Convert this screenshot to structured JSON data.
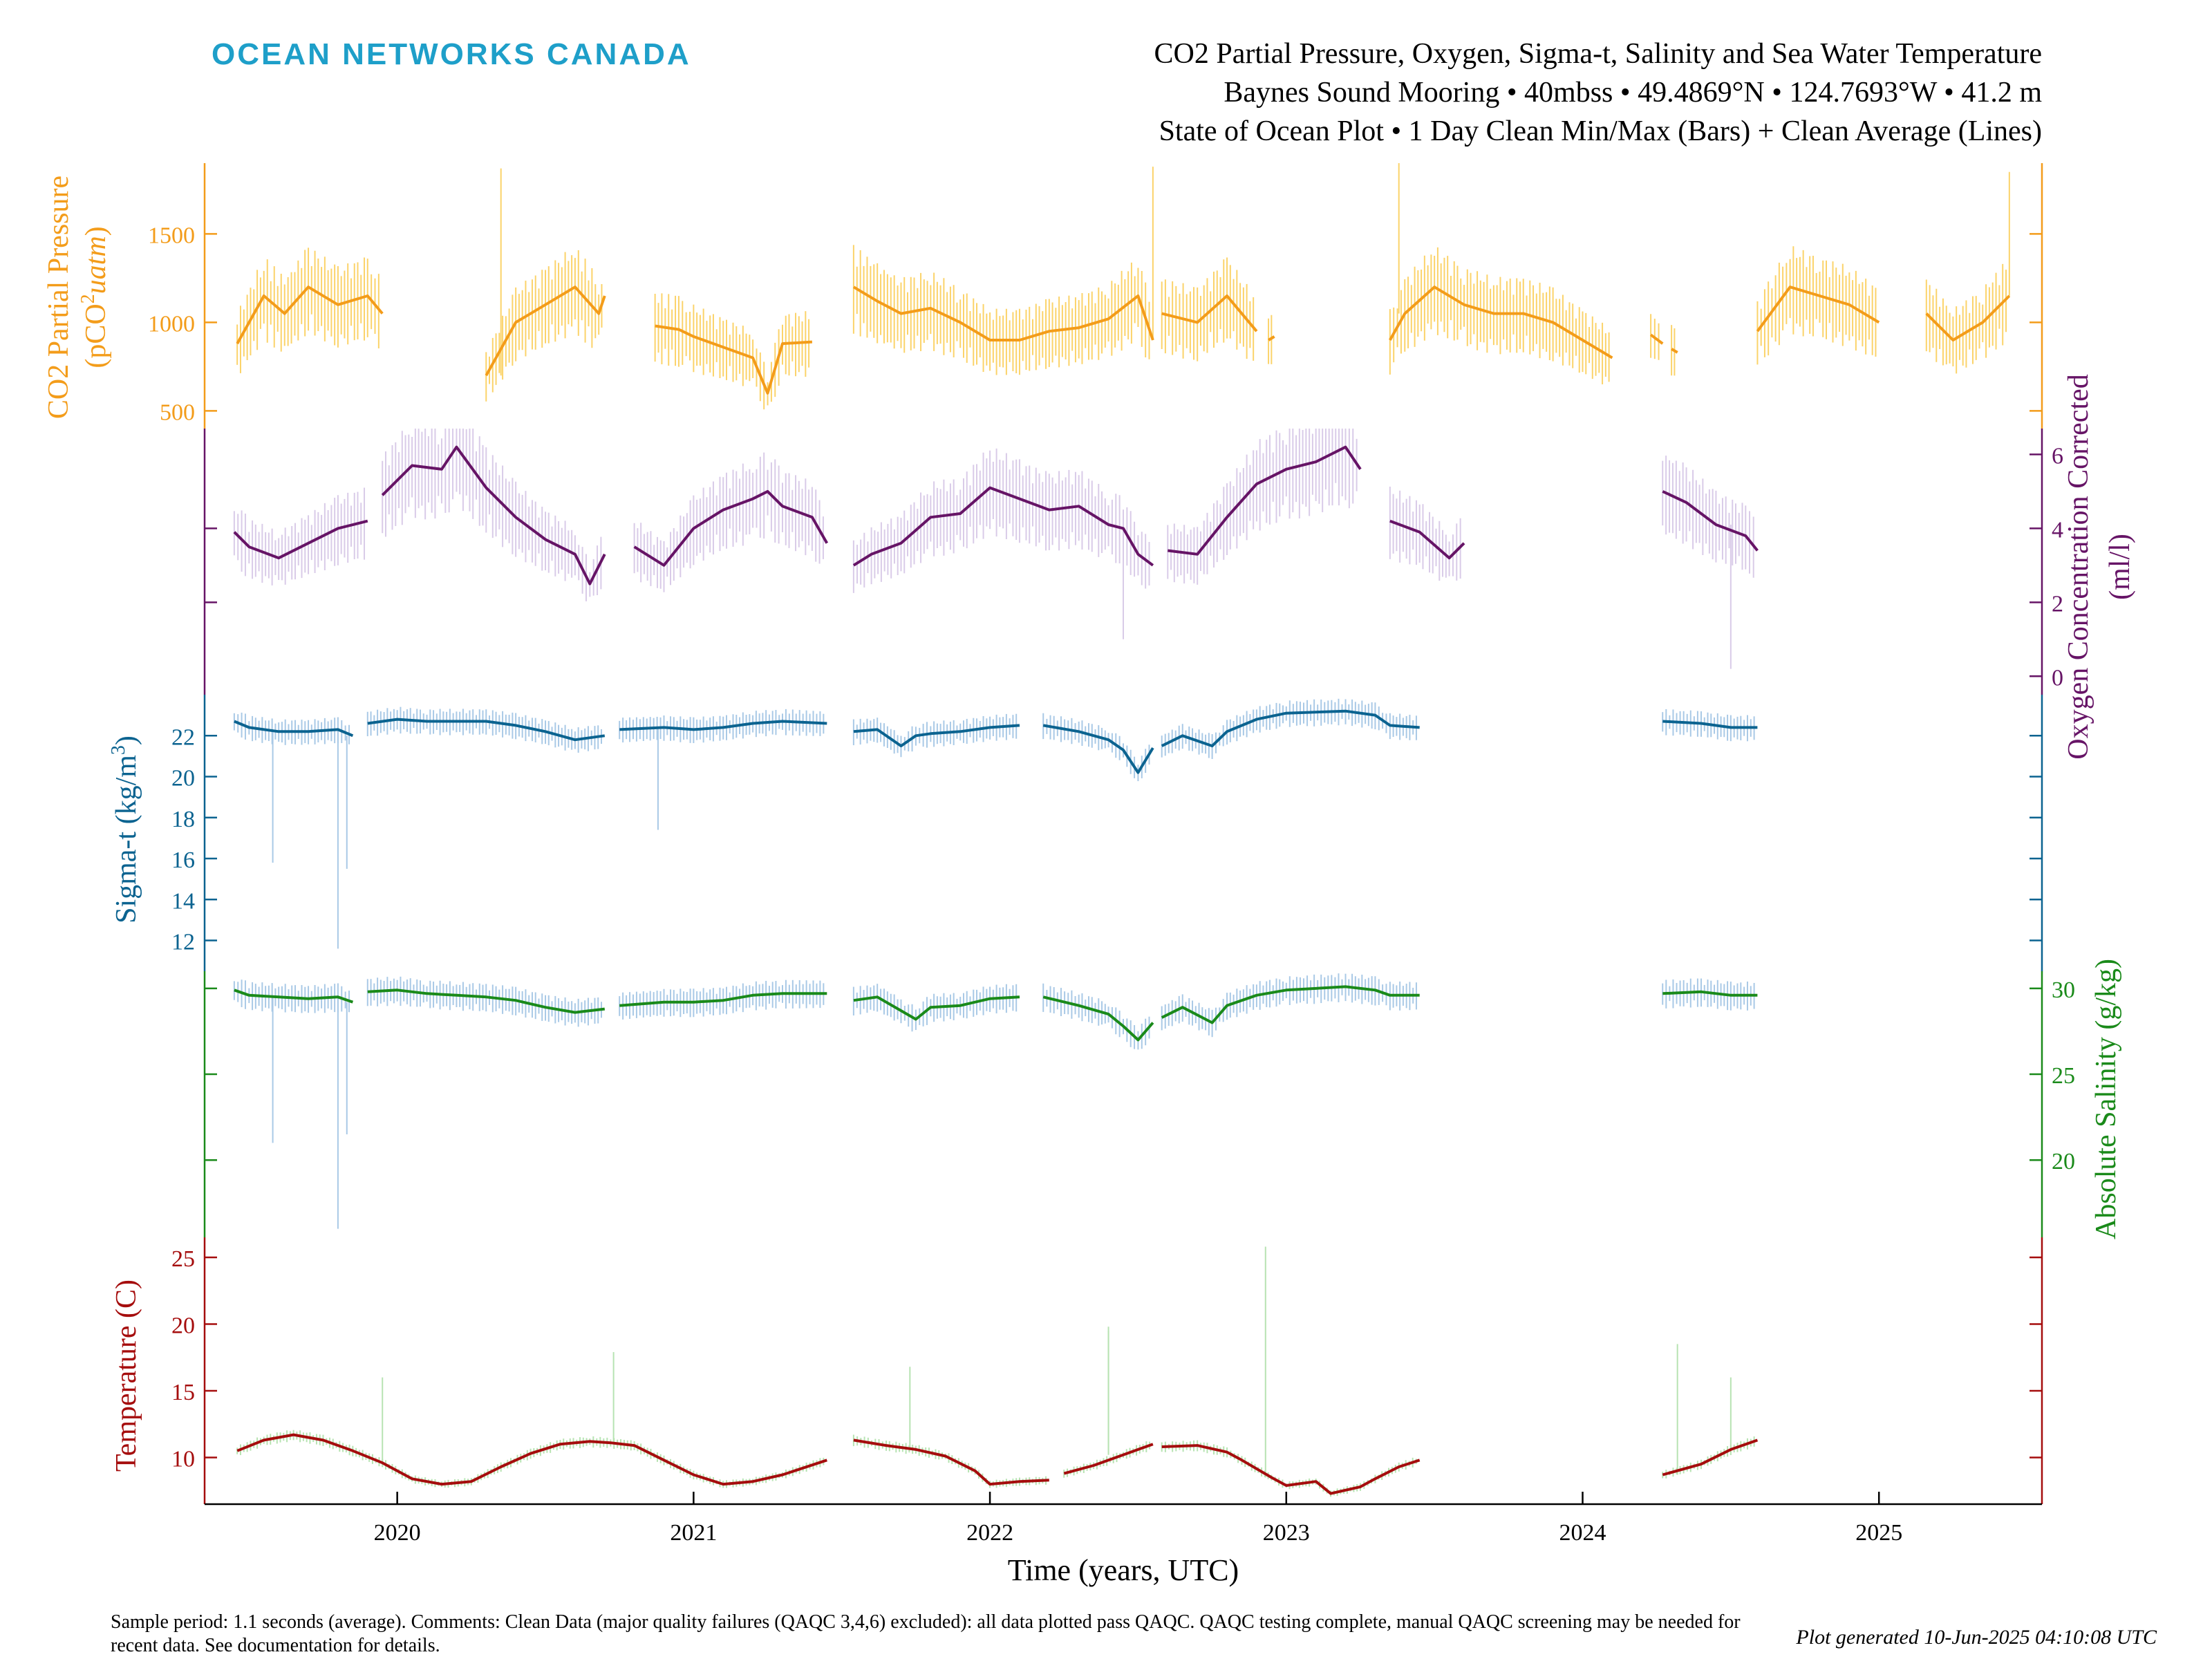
{
  "logo_text": "OCEAN NETWORKS CANADA",
  "title_lines": [
    "CO2 Partial Pressure, Oxygen, Sigma-t, Salinity and Sea Water Temperature",
    "Baynes Sound Mooring • 40mbss • 49.4869°N • 124.7693°W • 41.2 m",
    "State of Ocean Plot • 1 Day Clean Min/Max (Bars) + Clean Average (Lines)"
  ],
  "footer": "Sample period: 1.1 seconds (average). Comments: Clean Data (major quality failures (QAQC 3,4,6) excluded): all data plotted pass QAQC. QAQC testing complete, manual QAQC screening may be needed for recent data. See documentation for details.",
  "generated": "Plot generated 10-Jun-2025 04:10:08 UTC",
  "chart_data": {
    "type": "line",
    "xlabel": "Time (years, UTC)",
    "xlim": [
      2019.35,
      2025.55
    ],
    "x_ticks": [
      2020,
      2021,
      2022,
      2023,
      2024,
      2025
    ],
    "x_tick_labels": [
      "2020",
      "2021",
      "2022",
      "2023",
      "2024",
      "2025"
    ],
    "series": [
      {
        "key": "co2",
        "ylabel": "CO2 Partial Pressure (pCO2uatm)",
        "ylabel_line1": "CO2 Partial Pressure",
        "ylabel_line2": "(pCO",
        "ylabel_sup": "2",
        "ylabel_italic": "uatm",
        "ylabel_close": ")",
        "axis_side": "left",
        "color": "#f39c1a",
        "band_color": "#fbd36a",
        "ylim": [
          400,
          1900
        ],
        "ticks": [
          500,
          1000,
          1500
        ],
        "tick_labels": [
          "500",
          "1000",
          "1500"
        ],
        "range_pct": 22,
        "x": [
          2019.46,
          2019.55,
          2019.62,
          2019.7,
          2019.8,
          2019.9,
          2019.95,
          null,
          2020.3,
          2020.4,
          2020.5,
          2020.6,
          2020.68,
          2020.7,
          null,
          2020.87,
          2020.95,
          2021.0,
          2021.1,
          2021.2,
          2021.25,
          2021.3,
          2021.4,
          null,
          2021.54,
          2021.62,
          2021.7,
          2021.8,
          2021.9,
          2022.0,
          2022.1,
          2022.2,
          2022.3,
          2022.4,
          2022.5,
          2022.55,
          null,
          2022.58,
          2022.7,
          2022.8,
          2022.9,
          null,
          2022.94,
          2022.96,
          null,
          2023.35,
          2023.4,
          2023.5,
          2023.6,
          2023.7,
          2023.8,
          2023.9,
          2024.0,
          2024.1,
          null,
          2024.23,
          2024.27,
          null,
          2024.3,
          2024.32,
          null,
          2024.59,
          2024.7,
          2024.8,
          2024.9,
          2025.0,
          null,
          2025.16,
          2025.25,
          2025.35,
          2025.44
        ],
        "y": [
          880,
          1150,
          1050,
          1200,
          1100,
          1150,
          1050,
          null,
          700,
          1000,
          1100,
          1200,
          1050,
          1150,
          null,
          980,
          960,
          920,
          860,
          800,
          600,
          880,
          890,
          null,
          1200,
          1120,
          1050,
          1080,
          1000,
          900,
          900,
          950,
          970,
          1020,
          1150,
          900,
          null,
          1050,
          1000,
          1150,
          950,
          null,
          900,
          920,
          null,
          900,
          1050,
          1200,
          1100,
          1050,
          1050,
          1000,
          900,
          800,
          null,
          930,
          880,
          null,
          850,
          830,
          null,
          950,
          1200,
          1150,
          1100,
          1000,
          null,
          1050,
          900,
          1000,
          1150
        ]
      },
      {
        "key": "oxygen",
        "ylabel": "Oxygen Concentration Corrected (ml/l)",
        "ylabel_line1": "Oxygen Concentration Corrected",
        "ylabel_line2": "(ml/l)",
        "axis_side": "right",
        "color": "#661466",
        "band_color": "#d9cbe8",
        "ylim": [
          -0.5,
          6.7
        ],
        "ticks": [
          0,
          2,
          4,
          6
        ],
        "tick_labels": [
          "0",
          "2",
          "4",
          "6"
        ],
        "range_pct": 25,
        "x": [
          2019.45,
          2019.5,
          2019.6,
          2019.7,
          2019.8,
          2019.9,
          null,
          2019.95,
          2020.05,
          2020.15,
          2020.2,
          2020.3,
          2020.4,
          2020.5,
          2020.6,
          2020.65,
          2020.7,
          null,
          2020.8,
          2020.9,
          2021.0,
          2021.1,
          2021.2,
          2021.25,
          2021.3,
          2021.4,
          2021.45,
          null,
          2021.54,
          2021.6,
          2021.7,
          2021.8,
          2021.9,
          2022.0,
          2022.1,
          2022.2,
          2022.3,
          2022.4,
          2022.45,
          2022.5,
          2022.55,
          null,
          2022.6,
          2022.7,
          2022.8,
          2022.9,
          2023.0,
          2023.1,
          2023.2,
          2023.25,
          null,
          2023.35,
          2023.45,
          2023.55,
          2023.6,
          null,
          2024.27,
          2024.35,
          2024.45,
          2024.55,
          2024.59
        ],
        "y": [
          3.9,
          3.5,
          3.2,
          3.6,
          4.0,
          4.2,
          null,
          4.9,
          5.7,
          5.6,
          6.2,
          5.1,
          4.3,
          3.7,
          3.3,
          2.5,
          3.3,
          null,
          3.5,
          3.0,
          4.0,
          4.5,
          4.8,
          5.0,
          4.6,
          4.3,
          3.6,
          null,
          3.0,
          3.3,
          3.6,
          4.3,
          4.4,
          5.1,
          4.8,
          4.5,
          4.6,
          4.1,
          4.0,
          3.3,
          3.0,
          null,
          3.4,
          3.3,
          4.3,
          5.2,
          5.6,
          5.8,
          6.2,
          5.6,
          null,
          4.2,
          3.9,
          3.2,
          3.6,
          null,
          5.0,
          4.7,
          4.1,
          3.8,
          3.4
        ]
      },
      {
        "key": "sigma_t",
        "ylabel": "Sigma-t (kg/m3)",
        "ylabel_text": "Sigma-t (kg/m",
        "ylabel_sup": "3",
        "ylabel_close": ")",
        "axis_side": "left",
        "color": "#0b6390",
        "band_color": "#a9c9e6",
        "ylim": [
          10.5,
          24
        ],
        "ticks": [
          12,
          14,
          16,
          18,
          20,
          22
        ],
        "tick_labels": [
          "12",
          "14",
          "16",
          "18",
          "20",
          "22"
        ],
        "range_pct": 3,
        "x": [
          2019.45,
          2019.5,
          2019.6,
          2019.7,
          2019.8,
          2019.85,
          null,
          2019.9,
          2020.0,
          2020.1,
          2020.2,
          2020.3,
          2020.4,
          2020.5,
          2020.6,
          2020.7,
          null,
          2020.75,
          2020.9,
          2021.0,
          2021.1,
          2021.2,
          2021.3,
          2021.45,
          null,
          2021.54,
          2021.62,
          2021.7,
          2021.75,
          2021.8,
          2021.9,
          2022.0,
          2022.1,
          null,
          2022.18,
          2022.3,
          2022.4,
          2022.45,
          2022.5,
          2022.55,
          null,
          2022.58,
          2022.65,
          2022.75,
          2022.8,
          2022.9,
          2023.0,
          2023.2,
          2023.3,
          2023.35,
          2023.45,
          null,
          2024.27,
          2024.4,
          2024.5,
          2024.59
        ],
        "y": [
          22.7,
          22.4,
          22.2,
          22.2,
          22.3,
          22.0,
          null,
          22.6,
          22.8,
          22.7,
          22.7,
          22.7,
          22.5,
          22.2,
          21.8,
          22.0,
          null,
          22.3,
          22.4,
          22.3,
          22.4,
          22.6,
          22.7,
          22.6,
          null,
          22.2,
          22.3,
          21.5,
          22.0,
          22.1,
          22.2,
          22.4,
          22.5,
          null,
          22.5,
          22.2,
          21.8,
          21.3,
          20.2,
          21.4,
          null,
          21.5,
          22.0,
          21.5,
          22.2,
          22.8,
          23.1,
          23.2,
          23.0,
          22.5,
          22.4,
          null,
          22.7,
          22.6,
          22.4,
          22.4
        ]
      },
      {
        "key": "salinity",
        "ylabel": "Absolute Salinity (g/kg)",
        "axis_side": "right",
        "color": "#1a8a1a",
        "band_color": "#a9c9e6",
        "ylim": [
          15.5,
          31
        ],
        "ticks": [
          20,
          25,
          30
        ],
        "tick_labels": [
          "20",
          "25",
          "30"
        ],
        "range_pct": 3,
        "x": [
          2019.45,
          2019.5,
          2019.6,
          2019.7,
          2019.8,
          2019.85,
          null,
          2019.9,
          2020.0,
          2020.1,
          2020.2,
          2020.3,
          2020.4,
          2020.5,
          2020.6,
          2020.7,
          null,
          2020.75,
          2020.9,
          2021.0,
          2021.1,
          2021.2,
          2021.3,
          2021.45,
          null,
          2021.54,
          2021.62,
          2021.7,
          2021.75,
          2021.8,
          2021.9,
          2022.0,
          2022.1,
          null,
          2022.18,
          2022.3,
          2022.4,
          2022.45,
          2022.5,
          2022.55,
          null,
          2022.58,
          2022.65,
          2022.75,
          2022.8,
          2022.9,
          2023.0,
          2023.2,
          2023.3,
          2023.35,
          2023.45,
          null,
          2024.27,
          2024.4,
          2024.5,
          2024.59
        ],
        "y": [
          29.9,
          29.6,
          29.5,
          29.4,
          29.5,
          29.2,
          null,
          29.8,
          29.9,
          29.7,
          29.6,
          29.5,
          29.3,
          28.9,
          28.6,
          28.8,
          null,
          29.0,
          29.2,
          29.2,
          29.3,
          29.6,
          29.7,
          29.7,
          null,
          29.3,
          29.5,
          28.7,
          28.2,
          28.9,
          29.0,
          29.4,
          29.5,
          null,
          29.5,
          29.0,
          28.5,
          27.8,
          27.0,
          28.0,
          null,
          28.3,
          28.9,
          28.0,
          29.0,
          29.6,
          29.9,
          30.1,
          29.9,
          29.6,
          29.6,
          null,
          29.7,
          29.8,
          29.6,
          29.6
        ]
      },
      {
        "key": "temperature",
        "ylabel": "Temperature (C)",
        "axis_side": "left",
        "color": "#a50d0d",
        "band_color": "#b7e3b2",
        "ylim": [
          6.5,
          26.5
        ],
        "ticks": [
          10,
          15,
          20,
          25
        ],
        "tick_labels": [
          "10",
          "15",
          "20",
          "25"
        ],
        "range_pct": 4,
        "x": [
          2019.46,
          2019.55,
          2019.65,
          2019.75,
          2019.85,
          2019.95,
          2020.05,
          2020.15,
          2020.25,
          2020.35,
          2020.45,
          2020.55,
          2020.65,
          2020.72,
          2020.8,
          2020.9,
          2021.0,
          2021.1,
          2021.2,
          2021.3,
          2021.45,
          null,
          2021.54,
          2021.65,
          2021.75,
          2021.85,
          2021.95,
          2022.0,
          2022.1,
          2022.2,
          null,
          2022.25,
          2022.35,
          2022.45,
          2022.55,
          null,
          2022.58,
          2022.7,
          2022.8,
          2022.85,
          2022.95,
          2023.0,
          2023.1,
          2023.15,
          2023.25,
          2023.3,
          2023.38,
          2023.45,
          null,
          2024.27,
          2024.4,
          2024.5,
          2024.59
        ],
        "y": [
          10.5,
          11.3,
          11.7,
          11.3,
          10.5,
          9.6,
          8.4,
          8.0,
          8.2,
          9.3,
          10.3,
          11.0,
          11.2,
          11.1,
          10.9,
          9.8,
          8.7,
          8.0,
          8.2,
          8.7,
          9.8,
          null,
          11.3,
          10.9,
          10.6,
          10.1,
          9.0,
          8.0,
          8.2,
          8.3,
          null,
          8.8,
          9.4,
          10.2,
          11.0,
          null,
          10.8,
          10.9,
          10.4,
          9.8,
          8.5,
          7.9,
          8.2,
          7.3,
          7.8,
          8.4,
          9.3,
          9.8,
          null,
          8.7,
          9.5,
          10.6,
          11.3
        ]
      }
    ],
    "spikes": [
      {
        "series": "temperature",
        "x": 2022.93,
        "y": 25.8
      },
      {
        "series": "temperature",
        "x": 2022.4,
        "y": 19.8
      },
      {
        "series": "temperature",
        "x": 2022.4,
        "y": 19.5
      },
      {
        "series": "temperature",
        "x": 2024.32,
        "y": 18.5
      },
      {
        "series": "temperature",
        "x": 2020.73,
        "y": 17.9
      },
      {
        "series": "temperature",
        "x": 2021.73,
        "y": 16.8
      },
      {
        "series": "temperature",
        "x": 2019.95,
        "y": 16.0
      },
      {
        "series": "temperature",
        "x": 2024.5,
        "y": 16.0
      },
      {
        "series": "sigma_t",
        "x": 2019.8,
        "y": 11.6
      },
      {
        "series": "sigma_t",
        "x": 2019.58,
        "y": 15.8
      },
      {
        "series": "sigma_t",
        "x": 2019.83,
        "y": 15.5
      },
      {
        "series": "sigma_t",
        "x": 2020.88,
        "y": 17.4
      },
      {
        "series": "salinity",
        "x": 2019.8,
        "y": 16.0
      },
      {
        "series": "salinity",
        "x": 2019.58,
        "y": 21.0
      },
      {
        "series": "salinity",
        "x": 2019.83,
        "y": 21.5
      },
      {
        "series": "co2",
        "x": 2022.55,
        "y": 1880
      },
      {
        "series": "co2",
        "x": 2020.35,
        "y": 1870
      },
      {
        "series": "co2",
        "x": 2023.38,
        "y": 1900
      },
      {
        "series": "co2",
        "x": 2025.44,
        "y": 1850
      },
      {
        "series": "oxygen",
        "x": 2022.45,
        "y": 1.0
      },
      {
        "series": "oxygen",
        "x": 2024.5,
        "y": 0.2
      }
    ]
  }
}
